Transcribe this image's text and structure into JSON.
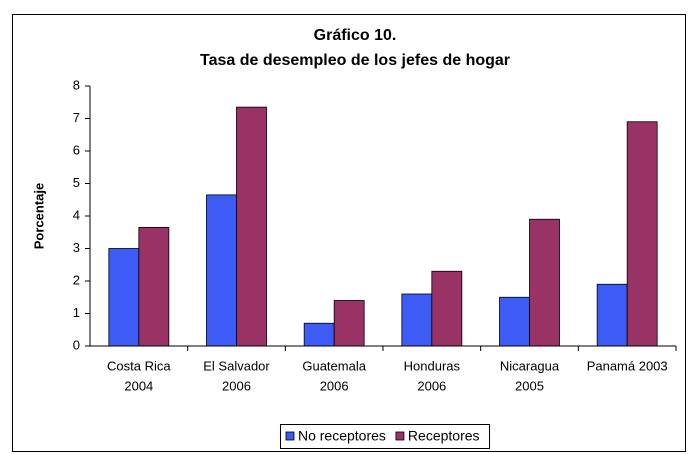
{
  "chart_data": {
    "type": "bar",
    "title": "Gráfico 10.",
    "subtitle": "Tasa de desempleo de los jefes de hogar",
    "y_label": "Porcentaje",
    "categories": [
      [
        "Costa Rica",
        "2004"
      ],
      [
        "El Salvador",
        "2006"
      ],
      [
        "Guatemala",
        "2006"
      ],
      [
        "Honduras",
        "2006"
      ],
      [
        "Nicaragua",
        "2005"
      ],
      [
        "Panamá 2003"
      ]
    ],
    "series": [
      {
        "name": "No receptores",
        "color": "#3d5cf5",
        "values": [
          3.0,
          4.65,
          0.7,
          1.6,
          1.5,
          1.9
        ]
      },
      {
        "name": "Receptores",
        "color": "#993366",
        "values": [
          3.65,
          7.35,
          1.4,
          2.3,
          3.9,
          6.9
        ]
      }
    ],
    "ylim": [
      0,
      8
    ],
    "yticks": [
      0,
      1,
      2,
      3,
      4,
      5,
      6,
      7,
      8
    ],
    "grid": false,
    "legend": "bottom"
  }
}
